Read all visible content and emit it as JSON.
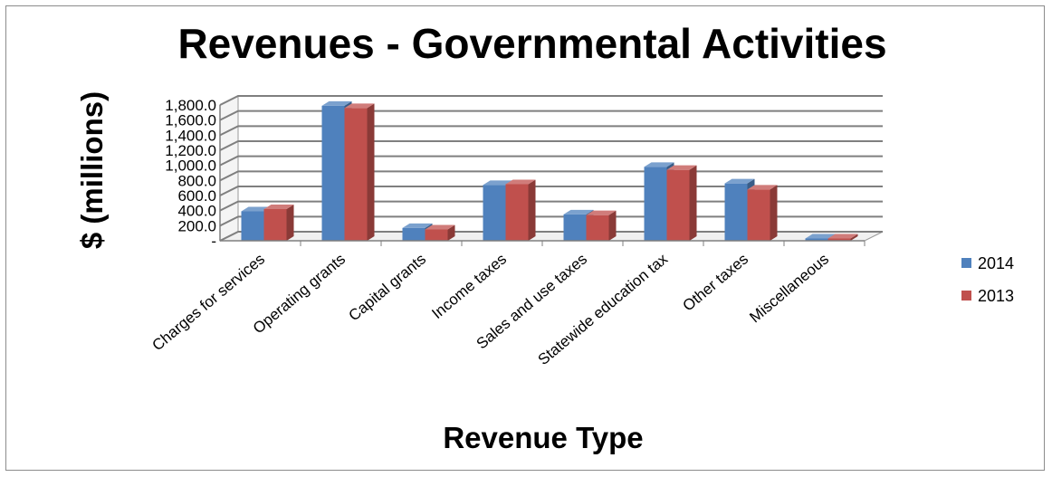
{
  "chart_data": {
    "type": "bar",
    "title": "Revenues - Governmental Activities",
    "xlabel": "Revenue Type",
    "ylabel": "$ (millions)",
    "categories": [
      "Charges for services",
      "Operating grants",
      "Capital grants",
      "Income taxes",
      "Sales and use taxes",
      "Statewide education tax",
      "Other taxes",
      "Miscellaneous"
    ],
    "series": [
      {
        "name": "2014",
        "color": "#4f81bd",
        "values": [
          390,
          1790,
          170,
          740,
          350,
          980,
          760,
          30
        ]
      },
      {
        "name": "2013",
        "color": "#c0504d",
        "values": [
          420,
          1760,
          150,
          750,
          340,
          940,
          680,
          30
        ]
      }
    ],
    "ylim": [
      0,
      1800
    ],
    "yticks": [
      "-",
      "200.0",
      "400.0",
      "600.0",
      "800.0",
      "1,000.0",
      "1,200.0",
      "1,400.0",
      "1,600.0",
      "1,800.0"
    ],
    "grid": true,
    "legend_position": "right",
    "style": "3d-clustered-column"
  }
}
